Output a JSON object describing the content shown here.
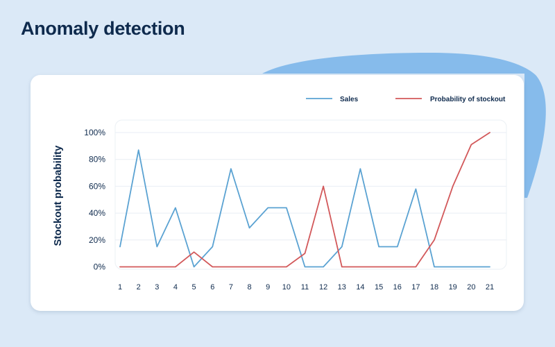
{
  "page": {
    "title": "Anomaly detection"
  },
  "colors": {
    "background": "#dbe9f7",
    "blob": "#86bbeb",
    "card": "#ffffff",
    "sales": "#5aa2d2",
    "stockout": "#d2585a",
    "text": "#0e2a4d",
    "grid": "#e8eef4"
  },
  "chart_data": {
    "type": "line",
    "title": "",
    "xlabel": "",
    "ylabel": "Stockout probability",
    "x": [
      1,
      2,
      3,
      4,
      5,
      6,
      7,
      8,
      9,
      10,
      11,
      12,
      13,
      14,
      15,
      16,
      17,
      18,
      19,
      20,
      21
    ],
    "ylim": [
      0,
      100
    ],
    "yticks": [
      "0%",
      "20%",
      "40%",
      "60%",
      "80%",
      "100%"
    ],
    "grid": true,
    "legend_position": "top-right",
    "series": [
      {
        "name": "Sales",
        "color": "#5aa2d2",
        "values": [
          15,
          87,
          15,
          44,
          0,
          15,
          73,
          29,
          44,
          44,
          0,
          0,
          15,
          73,
          15,
          15,
          58,
          0,
          0,
          0,
          0
        ]
      },
      {
        "name": "Probability of stockout",
        "color": "#d2585a",
        "values": [
          0,
          0,
          0,
          0,
          11,
          0,
          0,
          0,
          0,
          0,
          10,
          60,
          0,
          0,
          0,
          0,
          0,
          20,
          60,
          91,
          100
        ]
      }
    ]
  }
}
